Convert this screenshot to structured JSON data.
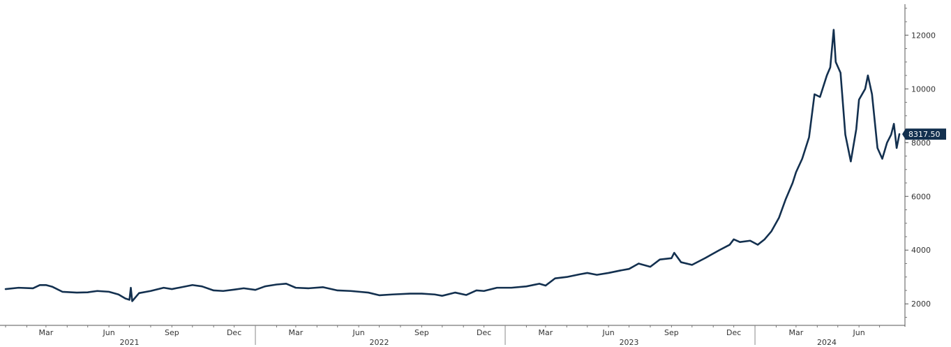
{
  "chart_data": {
    "type": "line",
    "title": "",
    "xlabel": "",
    "ylabel": "",
    "x_range": [
      "2021-01-01",
      "2024-07-31"
    ],
    "ylim": [
      1200,
      13100
    ],
    "y_ticks": [
      2000,
      4000,
      6000,
      8000,
      10000,
      12000
    ],
    "y_axis_position": "right",
    "grid": false,
    "line_color": "#13304f",
    "month_ticks": [
      {
        "date": "2021-03-01",
        "label": "Mar"
      },
      {
        "date": "2021-06-01",
        "label": "Jun"
      },
      {
        "date": "2021-09-01",
        "label": "Sep"
      },
      {
        "date": "2021-12-01",
        "label": "Dec"
      },
      {
        "date": "2022-03-01",
        "label": "Mar"
      },
      {
        "date": "2022-06-01",
        "label": "Jun"
      },
      {
        "date": "2022-09-01",
        "label": "Sep"
      },
      {
        "date": "2022-12-01",
        "label": "Dec"
      },
      {
        "date": "2023-03-01",
        "label": "Mar"
      },
      {
        "date": "2023-06-01",
        "label": "Jun"
      },
      {
        "date": "2023-09-01",
        "label": "Sep"
      },
      {
        "date": "2023-12-01",
        "label": "Dec"
      },
      {
        "date": "2024-03-01",
        "label": "Mar"
      },
      {
        "date": "2024-06-01",
        "label": "Jun"
      }
    ],
    "year_labels": [
      {
        "label": "2021",
        "date": "2021-07-01"
      },
      {
        "label": "2022",
        "date": "2022-07-01"
      },
      {
        "label": "2023",
        "date": "2023-07-01"
      },
      {
        "label": "2024",
        "date": "2024-04-15"
      }
    ],
    "year_separators": [
      "2022-01-01",
      "2023-01-01",
      "2024-01-01"
    ],
    "last_value": {
      "label": "8317.50",
      "value": 8317.5
    },
    "series": [
      {
        "points": [
          [
            "2021-01-01",
            2550
          ],
          [
            "2021-01-20",
            2600
          ],
          [
            "2021-02-10",
            2580
          ],
          [
            "2021-02-20",
            2700
          ],
          [
            "2021-03-01",
            2700
          ],
          [
            "2021-03-10",
            2640
          ],
          [
            "2021-03-25",
            2450
          ],
          [
            "2021-04-15",
            2420
          ],
          [
            "2021-05-01",
            2430
          ],
          [
            "2021-05-15",
            2480
          ],
          [
            "2021-06-01",
            2450
          ],
          [
            "2021-06-15",
            2350
          ],
          [
            "2021-06-25",
            2200
          ],
          [
            "2021-07-01",
            2150
          ],
          [
            "2021-07-03",
            2600
          ],
          [
            "2021-07-05",
            2100
          ],
          [
            "2021-07-15",
            2400
          ],
          [
            "2021-08-01",
            2480
          ],
          [
            "2021-08-20",
            2600
          ],
          [
            "2021-09-01",
            2550
          ],
          [
            "2021-09-15",
            2620
          ],
          [
            "2021-10-01",
            2700
          ],
          [
            "2021-10-15",
            2650
          ],
          [
            "2021-11-01",
            2500
          ],
          [
            "2021-11-15",
            2480
          ],
          [
            "2021-12-01",
            2530
          ],
          [
            "2021-12-15",
            2580
          ],
          [
            "2022-01-01",
            2520
          ],
          [
            "2022-01-15",
            2650
          ],
          [
            "2022-02-01",
            2720
          ],
          [
            "2022-02-15",
            2750
          ],
          [
            "2022-03-01",
            2600
          ],
          [
            "2022-03-20",
            2580
          ],
          [
            "2022-04-10",
            2620
          ],
          [
            "2022-05-01",
            2500
          ],
          [
            "2022-05-20",
            2480
          ],
          [
            "2022-06-15",
            2420
          ],
          [
            "2022-07-01",
            2320
          ],
          [
            "2022-07-20",
            2350
          ],
          [
            "2022-08-15",
            2380
          ],
          [
            "2022-09-01",
            2380
          ],
          [
            "2022-09-20",
            2350
          ],
          [
            "2022-10-01",
            2300
          ],
          [
            "2022-10-20",
            2420
          ],
          [
            "2022-11-05",
            2330
          ],
          [
            "2022-11-20",
            2500
          ],
          [
            "2022-12-01",
            2480
          ],
          [
            "2022-12-20",
            2600
          ],
          [
            "2023-01-10",
            2600
          ],
          [
            "2023-02-01",
            2650
          ],
          [
            "2023-02-20",
            2750
          ],
          [
            "2023-03-01",
            2680
          ],
          [
            "2023-03-15",
            2950
          ],
          [
            "2023-04-01",
            3000
          ],
          [
            "2023-04-20",
            3100
          ],
          [
            "2023-05-01",
            3150
          ],
          [
            "2023-05-15",
            3080
          ],
          [
            "2023-06-01",
            3150
          ],
          [
            "2023-06-20",
            3250
          ],
          [
            "2023-07-01",
            3300
          ],
          [
            "2023-07-15",
            3500
          ],
          [
            "2023-08-01",
            3380
          ],
          [
            "2023-08-15",
            3650
          ],
          [
            "2023-09-01",
            3700
          ],
          [
            "2023-09-05",
            3900
          ],
          [
            "2023-09-15",
            3550
          ],
          [
            "2023-10-01",
            3450
          ],
          [
            "2023-10-20",
            3700
          ],
          [
            "2023-11-10",
            4000
          ],
          [
            "2023-11-25",
            4200
          ],
          [
            "2023-12-01",
            4400
          ],
          [
            "2023-12-10",
            4300
          ],
          [
            "2023-12-25",
            4350
          ],
          [
            "2024-01-05",
            4200
          ],
          [
            "2024-01-15",
            4400
          ],
          [
            "2024-01-25",
            4700
          ],
          [
            "2024-02-05",
            5200
          ],
          [
            "2024-02-15",
            5900
          ],
          [
            "2024-02-25",
            6500
          ],
          [
            "2024-03-01",
            6900
          ],
          [
            "2024-03-10",
            7400
          ],
          [
            "2024-03-20",
            8200
          ],
          [
            "2024-03-28",
            9800
          ],
          [
            "2024-04-05",
            9700
          ],
          [
            "2024-04-15",
            10500
          ],
          [
            "2024-04-20",
            10800
          ],
          [
            "2024-04-25",
            12200
          ],
          [
            "2024-04-28",
            11000
          ],
          [
            "2024-05-05",
            10600
          ],
          [
            "2024-05-12",
            8300
          ],
          [
            "2024-05-20",
            7300
          ],
          [
            "2024-05-28",
            8500
          ],
          [
            "2024-06-01",
            9600
          ],
          [
            "2024-06-10",
            10000
          ],
          [
            "2024-06-14",
            10500
          ],
          [
            "2024-06-20",
            9800
          ],
          [
            "2024-06-28",
            7800
          ],
          [
            "2024-07-05",
            7400
          ],
          [
            "2024-07-12",
            8000
          ],
          [
            "2024-07-18",
            8300
          ],
          [
            "2024-07-22",
            8700
          ],
          [
            "2024-07-26",
            7800
          ],
          [
            "2024-07-30",
            8317.5
          ]
        ]
      }
    ]
  }
}
